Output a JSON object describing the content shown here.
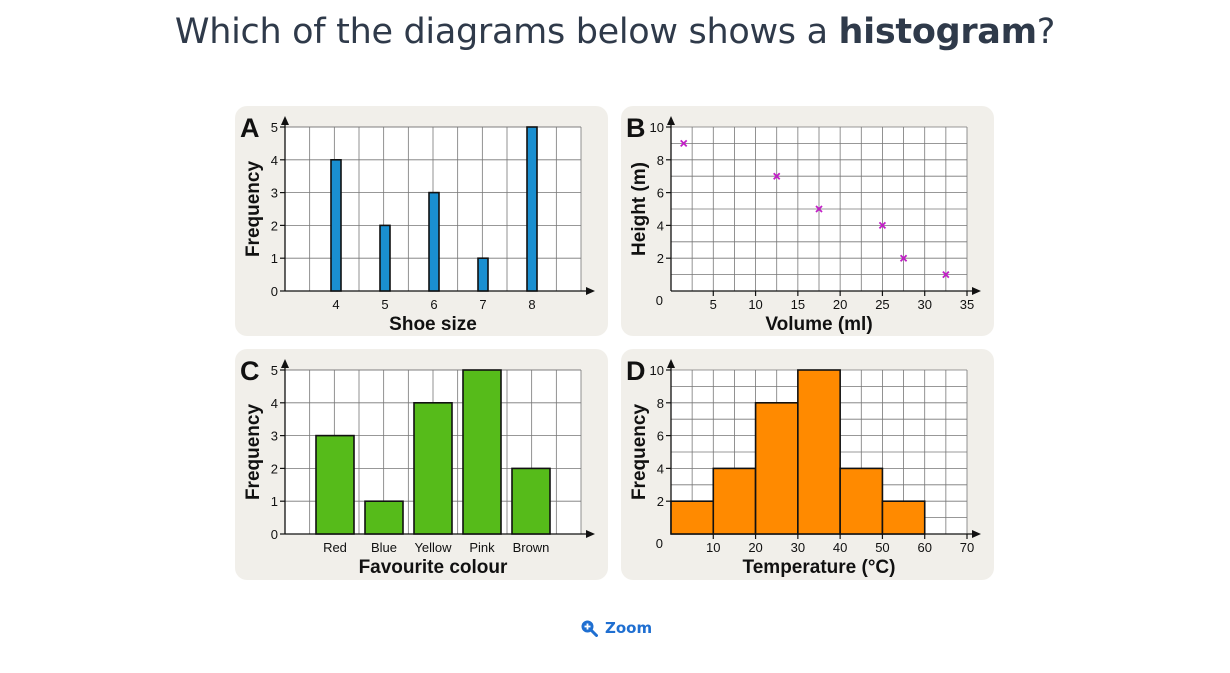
{
  "question": {
    "pre": "Which of the diagrams below shows a ",
    "bold": "histogram",
    "post": "?"
  },
  "zoom": {
    "label": "Zoom",
    "icon": "zoom-in-icon"
  },
  "colors": {
    "bars_a": "#1a8fd0",
    "bars_c": "#56bb1a",
    "bars_d": "#ff8a00",
    "points_b": "#c21fc7"
  },
  "chart_data": [
    {
      "id": "a",
      "letter": "A",
      "type": "bar",
      "categories": [
        "4",
        "5",
        "6",
        "7",
        "8"
      ],
      "values": [
        4,
        2,
        3,
        1,
        5
      ],
      "xlabel": "Shoe size",
      "ylabel": "Frequency",
      "ylim": [
        0,
        5
      ],
      "yticks": [
        "0",
        "1",
        "2",
        "3",
        "4",
        "5"
      ],
      "grid": true
    },
    {
      "id": "b",
      "letter": "B",
      "type": "scatter",
      "x": [
        1.5,
        12.5,
        17.5,
        25,
        27.5,
        32.5
      ],
      "y": [
        9,
        7,
        5,
        4,
        2,
        1
      ],
      "xlabel": "Volume (ml)",
      "ylabel": "Height (m)",
      "xlim": [
        0,
        35
      ],
      "ylim": [
        0,
        10
      ],
      "xticks": [
        "5",
        "10",
        "15",
        "20",
        "25",
        "30",
        "35"
      ],
      "yticks": [
        "2",
        "4",
        "6",
        "8",
        "10"
      ],
      "origin_label": "0",
      "grid": true
    },
    {
      "id": "c",
      "letter": "C",
      "type": "bar",
      "categories": [
        "Red",
        "Blue",
        "Yellow",
        "Pink",
        "Brown"
      ],
      "values": [
        3,
        1,
        4,
        5,
        2
      ],
      "xlabel": "Favourite colour",
      "ylabel": "Frequency",
      "ylim": [
        0,
        5
      ],
      "yticks": [
        "0",
        "1",
        "2",
        "3",
        "4",
        "5"
      ],
      "grid": true
    },
    {
      "id": "d",
      "letter": "D",
      "type": "bar",
      "bins": [
        [
          0,
          10
        ],
        [
          10,
          20
        ],
        [
          20,
          30
        ],
        [
          30,
          40
        ],
        [
          40,
          50
        ],
        [
          50,
          60
        ]
      ],
      "values": [
        2,
        4,
        8,
        10,
        4,
        2
      ],
      "xlabel": "Temperature (°C)",
      "ylabel": "Frequency",
      "xlim": [
        0,
        70
      ],
      "ylim": [
        0,
        10
      ],
      "xticks": [
        "10",
        "20",
        "30",
        "40",
        "50",
        "60",
        "70"
      ],
      "yticks": [
        "2",
        "4",
        "6",
        "8",
        "10"
      ],
      "origin_label": "0",
      "grid": true
    }
  ]
}
